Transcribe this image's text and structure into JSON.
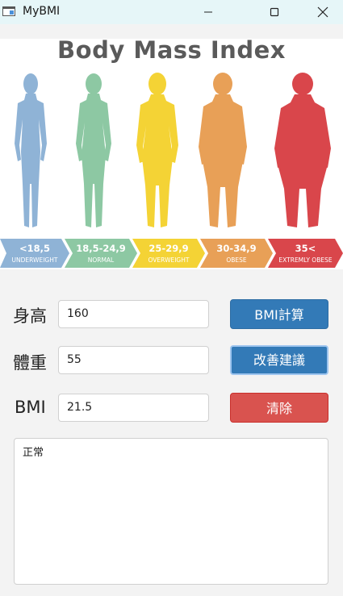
{
  "window": {
    "title": "MyBMI",
    "minimize_icon": "minimize-icon",
    "maximize_icon": "maximize-icon",
    "close_icon": "close-icon"
  },
  "banner": {
    "title": "Body Mass Index",
    "categories": [
      {
        "range": "<18,5",
        "label": "UNDERWEIGHT",
        "color": "#8fb3d6"
      },
      {
        "range": "18,5-24,9",
        "label": "NORMAL",
        "color": "#8dc8a3"
      },
      {
        "range": "25-29,9",
        "label": "OVERWEIGHT",
        "color": "#f4d335"
      },
      {
        "range": "30-34,9",
        "label": "OBESE",
        "color": "#e8a057"
      },
      {
        "range": "35<",
        "label": "EXTREMLY OBESE",
        "color": "#d9464b"
      }
    ]
  },
  "form": {
    "height_label": "身高",
    "height_value": "160",
    "weight_label": "體重",
    "weight_value": "55",
    "bmi_label": "BMI",
    "bmi_value": "21.5",
    "calc_button": "BMI計算",
    "advice_button": "改善建議",
    "clear_button": "清除",
    "result_text": "正常"
  }
}
